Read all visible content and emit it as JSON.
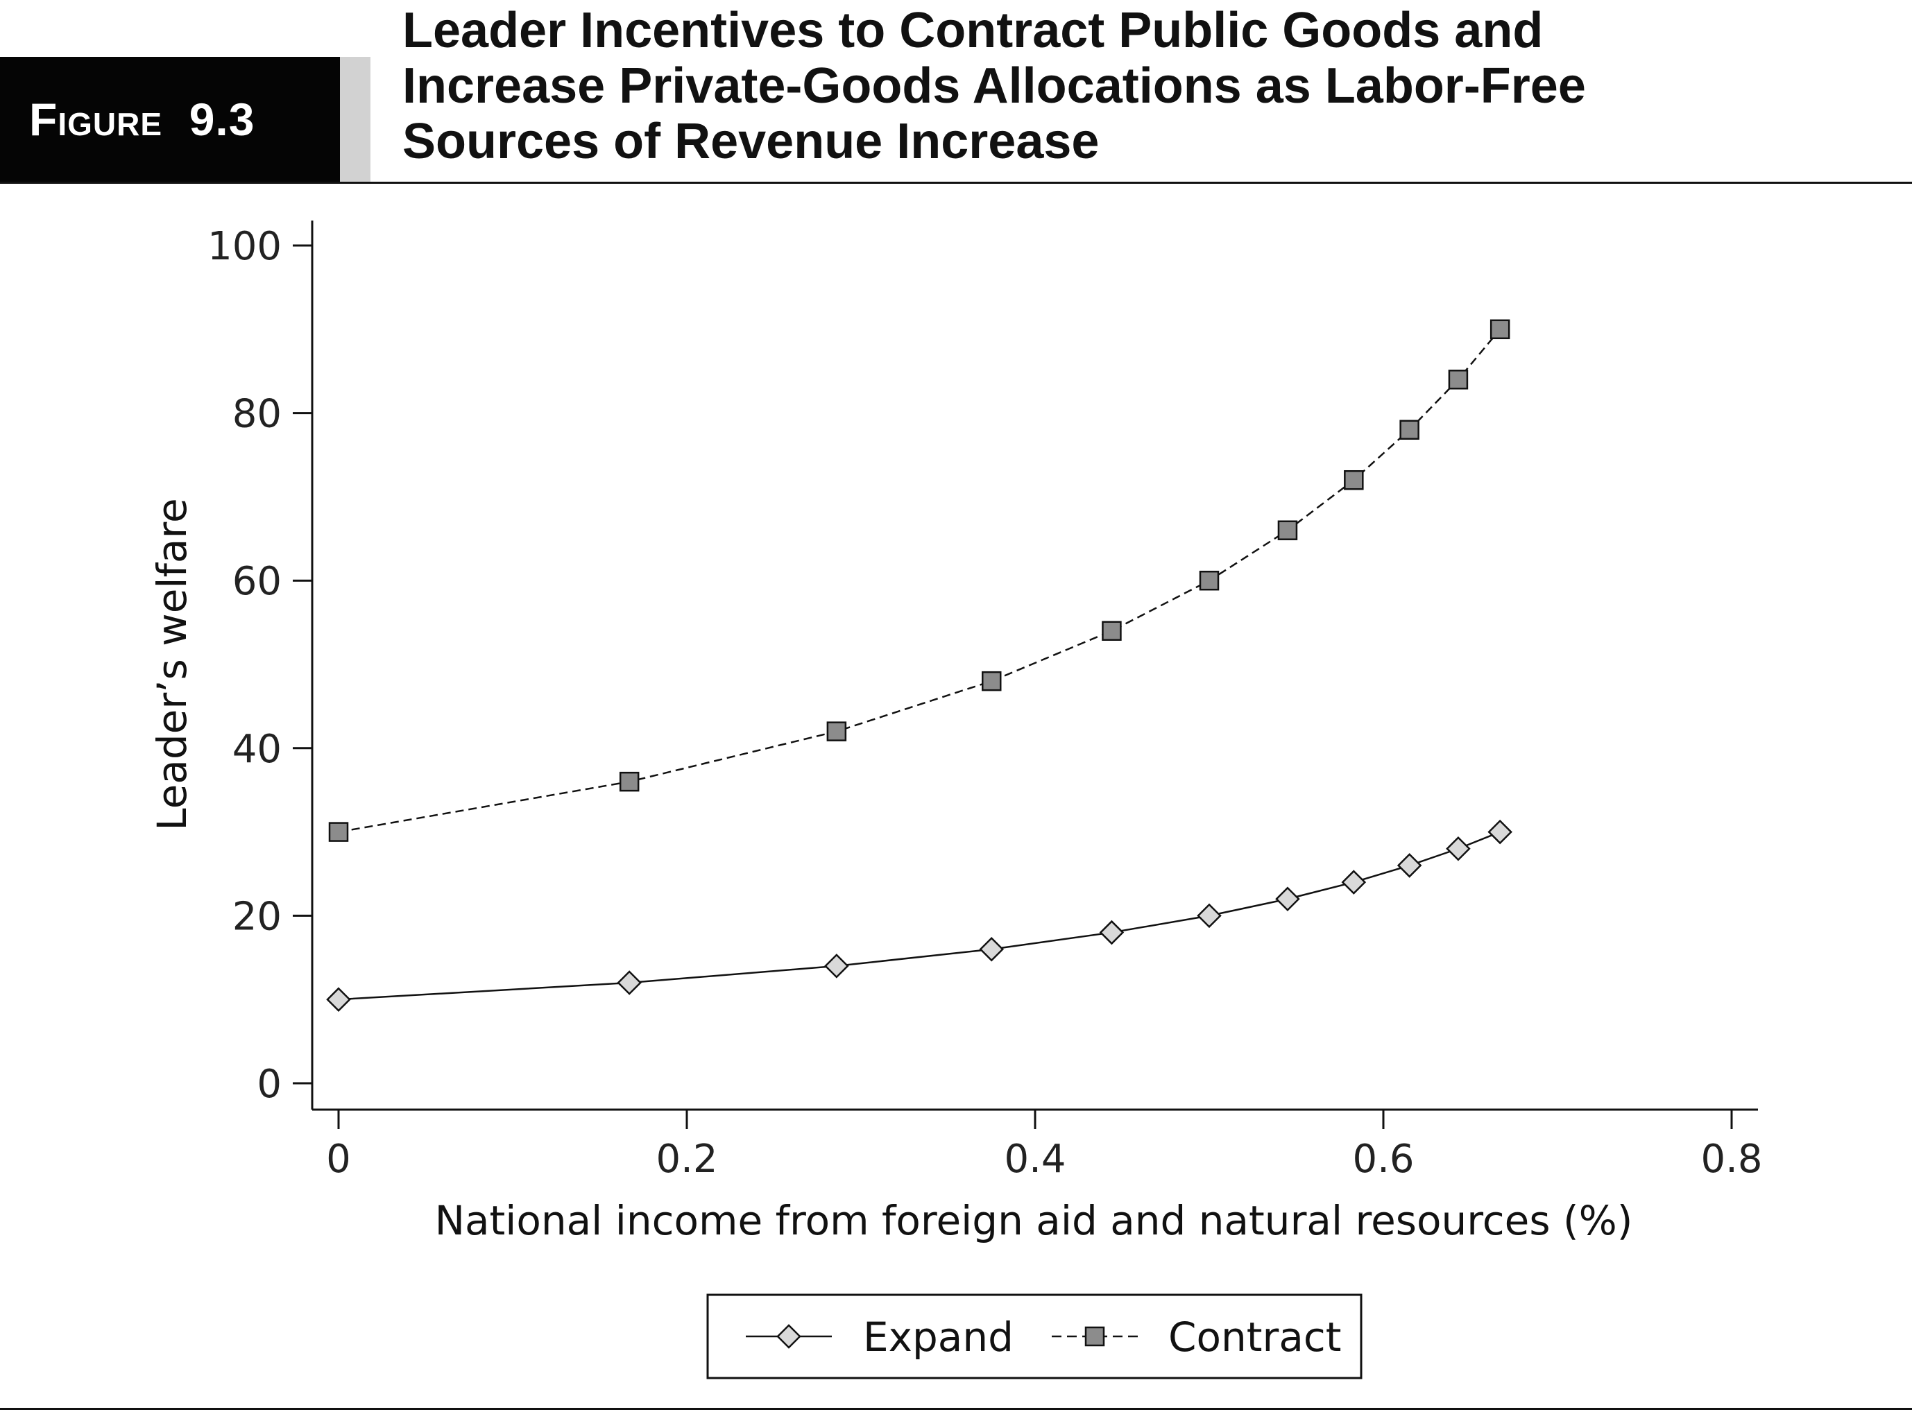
{
  "figure": {
    "label_word": "Figure",
    "label_number": "9.3",
    "title_lines": [
      "Leader Incentives to Contract Public Goods and",
      "Increase Private-Goods Allocations as Labor-Free",
      "Sources of Revenue Increase"
    ]
  },
  "chart_data": {
    "type": "line",
    "xlabel": "National income from foreign aid and natural resources (%)",
    "ylabel": "Leader’s welfare",
    "xlim": [
      0,
      0.8
    ],
    "ylim": [
      0,
      100
    ],
    "xticks": [
      0,
      0.2,
      0.4,
      0.6,
      0.8
    ],
    "xtick_labels": [
      "0",
      "0.2",
      "0.4",
      "0.6",
      "0.8"
    ],
    "yticks": [
      0,
      20,
      40,
      60,
      80,
      100
    ],
    "ytick_labels": [
      "0",
      "20",
      "40",
      "60",
      "80",
      "100"
    ],
    "grid": false,
    "legend_position": "bottom",
    "series": [
      {
        "name": "Expand",
        "marker": "diamond",
        "line_style": "solid",
        "marker_color": "#d9d9d9",
        "x": [
          0,
          0.167,
          0.286,
          0.375,
          0.444,
          0.5,
          0.545,
          0.583,
          0.615,
          0.643,
          0.667
        ],
        "y": [
          10,
          12,
          14,
          16,
          18,
          20,
          22,
          24,
          26,
          28,
          30
        ]
      },
      {
        "name": "Contract",
        "marker": "square",
        "line_style": "dashed",
        "marker_color": "#8c8c8c",
        "x": [
          0,
          0.167,
          0.286,
          0.375,
          0.444,
          0.5,
          0.545,
          0.583,
          0.615,
          0.643,
          0.667
        ],
        "y": [
          30,
          36,
          42,
          48,
          54,
          60,
          66,
          72,
          78,
          84,
          90
        ]
      }
    ]
  }
}
